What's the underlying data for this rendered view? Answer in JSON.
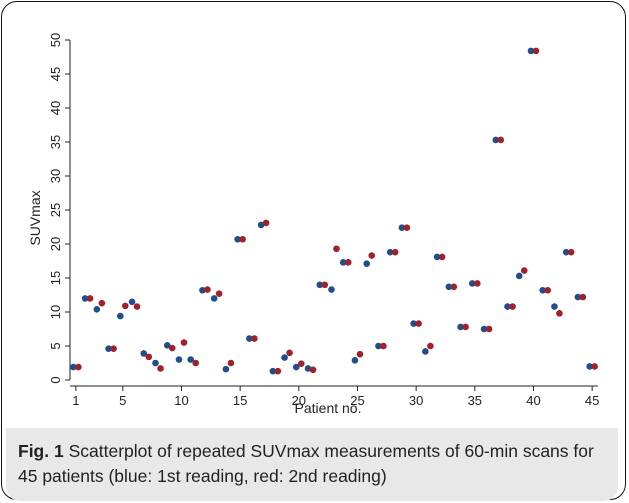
{
  "caption": {
    "label": "Fig. 1",
    "text": "Scatterplot of repeated SUVmax measurements of 60-min scans for 45 patients (blue: 1st reading, red: 2nd reading)"
  },
  "chart_data": {
    "type": "scatter",
    "xlabel": "Patient no.",
    "ylabel": "SUVmax",
    "xlim": [
      0.5,
      45.5
    ],
    "ylim": [
      0,
      50
    ],
    "xticks": [
      1,
      5,
      10,
      15,
      20,
      25,
      30,
      35,
      40,
      45
    ],
    "yticks": [
      0,
      5,
      10,
      15,
      20,
      25,
      30,
      35,
      40,
      45,
      50
    ],
    "grid": false,
    "x": [
      1,
      2,
      3,
      4,
      5,
      6,
      7,
      8,
      9,
      10,
      11,
      12,
      13,
      14,
      15,
      16,
      17,
      18,
      19,
      20,
      21,
      22,
      23,
      24,
      25,
      26,
      27,
      28,
      29,
      30,
      31,
      32,
      33,
      34,
      35,
      36,
      37,
      38,
      39,
      40,
      41,
      42,
      43,
      44,
      45
    ],
    "series": [
      {
        "color": "#1f4e8c",
        "values": [
          1.9,
          12.0,
          10.4,
          4.6,
          9.4,
          11.5,
          3.9,
          2.5,
          5.1,
          3.0,
          3.0,
          13.2,
          12.0,
          1.6,
          20.7,
          6.1,
          22.8,
          1.3,
          3.3,
          1.9,
          1.7,
          14.0,
          13.3,
          17.3,
          2.9,
          17.1,
          5.0,
          18.8,
          22.4,
          8.3,
          4.2,
          18.1,
          13.7,
          7.8,
          14.2,
          7.5,
          35.3,
          10.8,
          15.3,
          48.4,
          13.2,
          10.8,
          18.8,
          12.2,
          2.0
        ]
      },
      {
        "color": "#a3202a",
        "values": [
          1.9,
          12.0,
          11.3,
          4.6,
          10.9,
          10.8,
          3.4,
          1.7,
          4.7,
          5.5,
          2.5,
          13.3,
          12.7,
          2.5,
          20.7,
          6.1,
          23.1,
          1.3,
          4.0,
          2.4,
          1.5,
          14.0,
          19.3,
          17.3,
          3.8,
          18.3,
          5.0,
          18.8,
          22.4,
          8.3,
          5.0,
          18.1,
          13.7,
          7.8,
          14.2,
          7.5,
          35.3,
          10.8,
          16.1,
          48.4,
          13.2,
          9.8,
          18.8,
          12.2,
          2.0
        ]
      }
    ]
  }
}
